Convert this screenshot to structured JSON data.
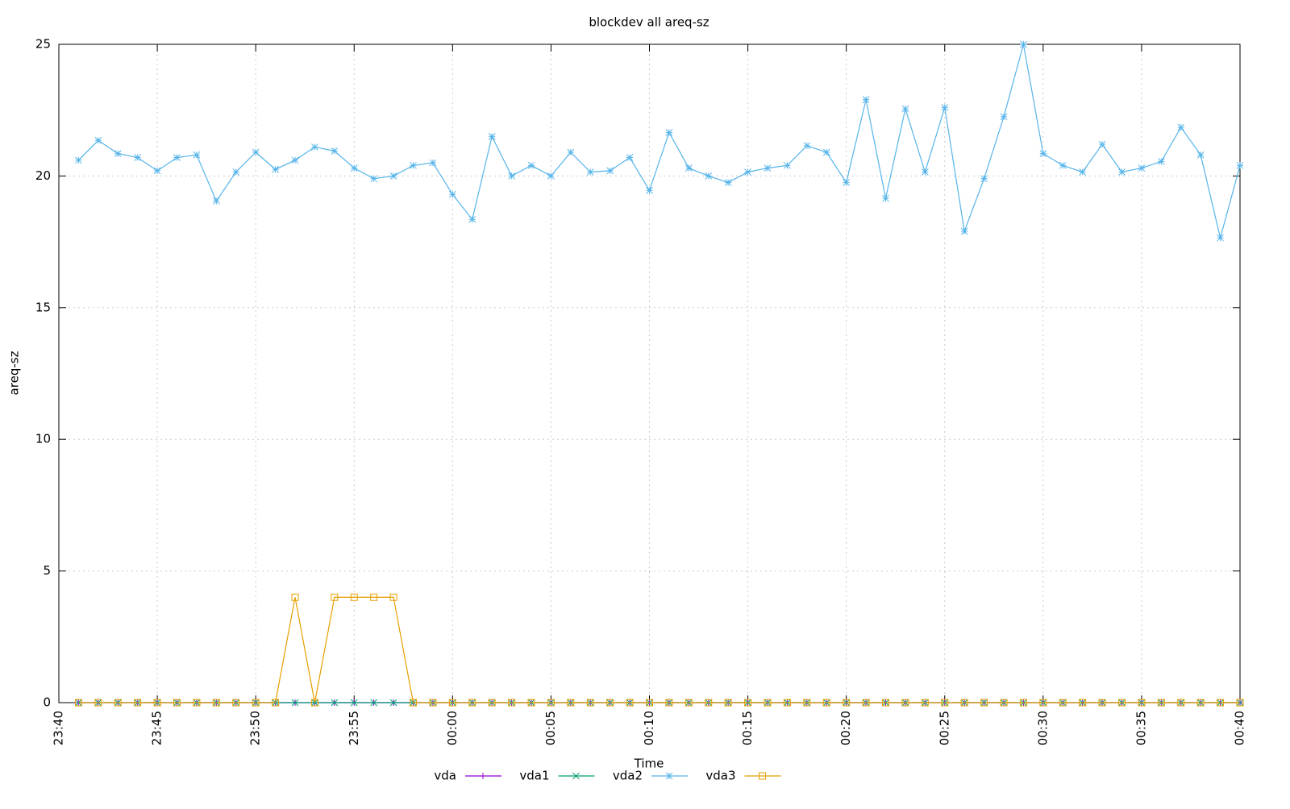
{
  "chart_data": {
    "type": "line",
    "title": "blockdev all areq-sz",
    "x_label": "Time",
    "y_label": "areq-sz",
    "x": [
      "23:41",
      "23:42",
      "23:43",
      "23:44",
      "23:45",
      "23:46",
      "23:47",
      "23:48",
      "23:49",
      "23:50",
      "23:51",
      "23:52",
      "23:53",
      "23:54",
      "23:55",
      "23:56",
      "23:57",
      "23:58",
      "23:59",
      "00:00",
      "00:01",
      "00:02",
      "00:03",
      "00:04",
      "00:05",
      "00:06",
      "00:07",
      "00:08",
      "00:09",
      "00:10",
      "00:11",
      "00:12",
      "00:13",
      "00:14",
      "00:15",
      "00:16",
      "00:17",
      "00:18",
      "00:19",
      "00:20",
      "00:21",
      "00:22",
      "00:23",
      "00:24",
      "00:25",
      "00:26",
      "00:27",
      "00:28",
      "00:29",
      "00:30",
      "00:31",
      "00:32",
      "00:33",
      "00:34",
      "00:35",
      "00:36",
      "00:37",
      "00:38",
      "00:39",
      "00:40"
    ],
    "series": [
      {
        "name": "vda",
        "color": "#9400d3",
        "marker": "plus",
        "values": [
          0,
          0,
          0,
          0,
          0,
          0,
          0,
          0,
          0,
          0,
          0,
          0,
          0,
          0,
          0,
          0,
          0,
          0,
          0,
          0,
          0,
          0,
          0,
          0,
          0,
          0,
          0,
          0,
          0,
          0,
          0,
          0,
          0,
          0,
          0,
          0,
          0,
          0,
          0,
          0,
          0,
          0,
          0,
          0,
          0,
          0,
          0,
          0,
          0,
          0,
          0,
          0,
          0,
          0,
          0,
          0,
          0,
          0,
          0,
          0
        ]
      },
      {
        "name": "vda1",
        "color": "#009e73",
        "marker": "cross",
        "values": [
          0,
          0,
          0,
          0,
          0,
          0,
          0,
          0,
          0,
          0,
          0,
          0,
          0,
          0,
          0,
          0,
          0,
          0,
          0,
          0,
          0,
          0,
          0,
          0,
          0,
          0,
          0,
          0,
          0,
          0,
          0,
          0,
          0,
          0,
          0,
          0,
          0,
          0,
          0,
          0,
          0,
          0,
          0,
          0,
          0,
          0,
          0,
          0,
          0,
          0,
          0,
          0,
          0,
          0,
          0,
          0,
          0,
          0,
          0,
          0
        ]
      },
      {
        "name": "vda2",
        "color": "#56b4e9",
        "marker": "star",
        "values": [
          20.6,
          21.35,
          20.85,
          20.7,
          20.2,
          20.7,
          20.8,
          19.05,
          20.15,
          20.9,
          20.25,
          20.6,
          21.1,
          20.95,
          20.3,
          19.9,
          20.0,
          20.4,
          20.5,
          19.3,
          18.35,
          21.5,
          20.0,
          20.4,
          20.0,
          20.9,
          20.15,
          20.2,
          20.7,
          19.45,
          21.65,
          20.3,
          20.0,
          19.75,
          20.15,
          20.3,
          20.4,
          21.15,
          20.9,
          19.75,
          22.9,
          19.15,
          22.55,
          20.15,
          22.6,
          17.9,
          19.9,
          22.25,
          25,
          20.85,
          20.4,
          20.15,
          21.2,
          20.15,
          20.3,
          20.55,
          21.85,
          20.8,
          17.65,
          20.4
        ]
      },
      {
        "name": "vda3",
        "color": "#e69f00",
        "marker": "square",
        "values": [
          0,
          0,
          0,
          0,
          0,
          0,
          0,
          0,
          0,
          0,
          0,
          4,
          0,
          4,
          4,
          4,
          4,
          0,
          0,
          0,
          0,
          0,
          0,
          0,
          0,
          0,
          0,
          0,
          0,
          0,
          0,
          0,
          0,
          0,
          0,
          0,
          0,
          0,
          0,
          0,
          0,
          0,
          0,
          0,
          0,
          0,
          0,
          0,
          0,
          0,
          0,
          0,
          0,
          0,
          0,
          0,
          0,
          0,
          0,
          0
        ]
      }
    ],
    "xlim": [
      "23:40",
      "00:40"
    ],
    "xticks": [
      "23:40",
      "23:45",
      "23:50",
      "23:55",
      "00:00",
      "00:05",
      "00:10",
      "00:15",
      "00:20",
      "00:25",
      "00:30",
      "00:35",
      "00:40"
    ],
    "ylim": [
      0,
      25
    ],
    "yticks": [
      0,
      5,
      10,
      15,
      20,
      25
    ],
    "grid": true,
    "legend": "bottom"
  }
}
